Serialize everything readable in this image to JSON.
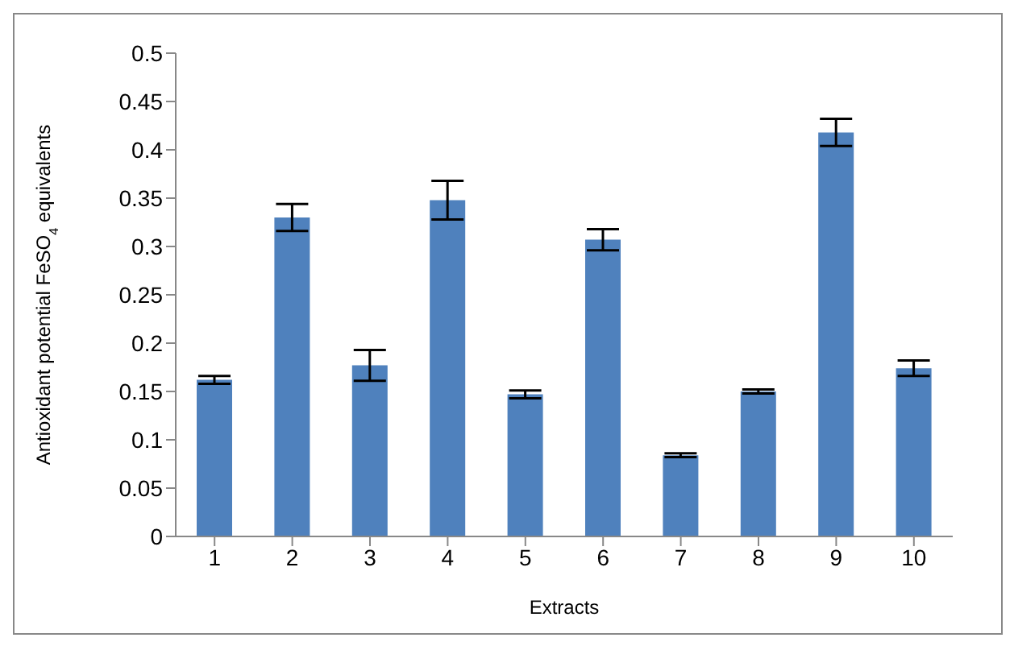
{
  "chart_data": {
    "type": "bar",
    "xlabel": "Extracts",
    "ylabel": "Antioxidant potential FeSO$_{4}$ equivalents",
    "categories": [
      "1",
      "2",
      "3",
      "4",
      "5",
      "6",
      "7",
      "8",
      "9",
      "10"
    ],
    "values": [
      0.162,
      0.33,
      0.177,
      0.348,
      0.147,
      0.307,
      0.084,
      0.15,
      0.418,
      0.174
    ],
    "errors": [
      0.004,
      0.014,
      0.016,
      0.02,
      0.004,
      0.011,
      0.002,
      0.002,
      0.014,
      0.008
    ],
    "color": "#4f81bd",
    "ylim": [
      0,
      0.5
    ],
    "yticks": [
      0,
      0.05,
      0.1,
      0.15,
      0.2,
      0.25,
      0.3,
      0.35,
      0.4,
      0.45,
      0.5
    ],
    "grid": false
  }
}
